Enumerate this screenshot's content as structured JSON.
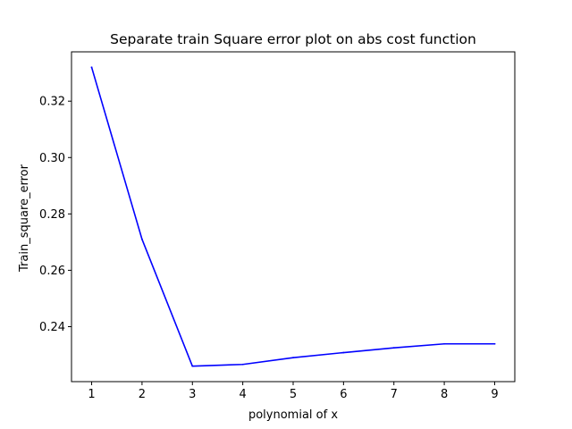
{
  "chart_data": {
    "type": "line",
    "title": "Separate train Square error plot on abs cost function",
    "xlabel": "polynomial of x",
    "ylabel": "Train_square_error",
    "x": [
      1,
      2,
      3,
      4,
      5,
      6,
      7,
      8,
      9
    ],
    "series": [
      {
        "values": [
          0.332,
          0.271,
          0.226,
          0.2266,
          0.229,
          0.2308,
          0.2325,
          0.2339,
          0.2339
        ],
        "color": "#0000ff"
      }
    ],
    "xlim": [
      0.6,
      9.4
    ],
    "ylim": [
      0.2205,
      0.3375
    ],
    "xticks": [
      1,
      2,
      3,
      4,
      5,
      6,
      7,
      8,
      9
    ],
    "yticks": [
      0.24,
      0.26,
      0.28,
      0.3,
      0.32
    ],
    "ytick_labels": [
      "0.24",
      "0.26",
      "0.28",
      "0.30",
      "0.32"
    ],
    "grid": false,
    "legend": "none"
  }
}
